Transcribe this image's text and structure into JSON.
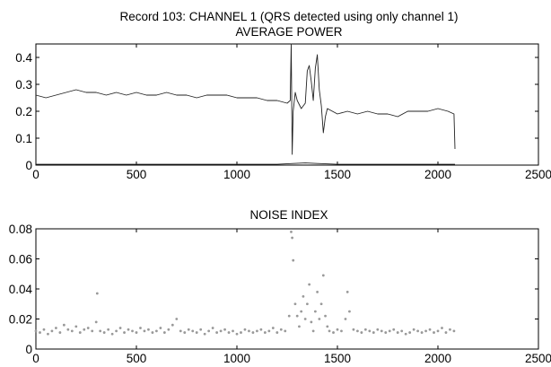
{
  "figure": {
    "suptitle": "Record 103: CHANNEL 1 (QRS detected using only channel 1)"
  },
  "chart_data": [
    {
      "type": "line",
      "title": "AVERAGE POWER",
      "xlabel": "",
      "ylabel": "",
      "xlim": [
        0,
        2500
      ],
      "ylim": [
        0,
        0.45
      ],
      "xticks": [
        0,
        500,
        1000,
        1500,
        2000,
        2500
      ],
      "yticks": [
        0,
        0.1,
        0.2,
        0.3,
        0.4
      ],
      "xtick_labels": [
        "0",
        "500",
        "1000",
        "1500",
        "2000",
        "2500"
      ],
      "ytick_labels": [
        "0",
        "0.1",
        "0.2",
        "0.3",
        "0.4"
      ],
      "grid": false,
      "series": [
        {
          "color": "#222222",
          "style": "line",
          "x": [
            0,
            50,
            100,
            150,
            200,
            250,
            300,
            350,
            400,
            450,
            500,
            550,
            600,
            650,
            700,
            750,
            800,
            850,
            900,
            950,
            1000,
            1050,
            1100,
            1150,
            1200,
            1250,
            1265,
            1270,
            1275,
            1280,
            1290,
            1300,
            1320,
            1340,
            1350,
            1360,
            1370,
            1380,
            1390,
            1400,
            1410,
            1420,
            1430,
            1440,
            1450,
            1500,
            1550,
            1600,
            1650,
            1700,
            1750,
            1800,
            1850,
            1900,
            1950,
            2000,
            2050,
            2080,
            2085
          ],
          "y": [
            0.26,
            0.25,
            0.26,
            0.27,
            0.28,
            0.27,
            0.27,
            0.26,
            0.27,
            0.26,
            0.27,
            0.26,
            0.26,
            0.27,
            0.26,
            0.26,
            0.25,
            0.26,
            0.26,
            0.26,
            0.25,
            0.25,
            0.25,
            0.24,
            0.24,
            0.23,
            0.24,
            0.45,
            0.04,
            0.2,
            0.27,
            0.24,
            0.21,
            0.23,
            0.35,
            0.37,
            0.31,
            0.24,
            0.36,
            0.41,
            0.28,
            0.22,
            0.12,
            0.18,
            0.21,
            0.19,
            0.2,
            0.19,
            0.2,
            0.19,
            0.19,
            0.18,
            0.2,
            0.2,
            0.2,
            0.21,
            0.2,
            0.19,
            0.06
          ]
        },
        {
          "color": "#222222",
          "style": "line",
          "x": [
            0,
            500,
            1000,
            1200,
            1280,
            1340,
            1400,
            1500,
            2000,
            2085
          ],
          "y": [
            0.003,
            0.003,
            0.003,
            0.003,
            0.006,
            0.008,
            0.006,
            0.003,
            0.003,
            0.003
          ]
        }
      ]
    },
    {
      "type": "scatter",
      "title": "NOISE INDEX",
      "xlabel": "",
      "ylabel": "",
      "xlim": [
        0,
        2500
      ],
      "ylim": [
        0,
        0.08
      ],
      "xticks": [
        0,
        500,
        1000,
        1500,
        2000,
        2500
      ],
      "yticks": [
        0,
        0.02,
        0.04,
        0.06,
        0.08
      ],
      "xtick_labels": [
        "0",
        "500",
        "1000",
        "1500",
        "2000",
        "2500"
      ],
      "ytick_labels": [
        "0",
        "0.02",
        "0.04",
        "0.06",
        "0.08"
      ],
      "grid": false,
      "series": [
        {
          "color": "#999999",
          "style": "points",
          "x": [
            0,
            20,
            40,
            60,
            80,
            100,
            120,
            140,
            160,
            180,
            200,
            220,
            240,
            260,
            280,
            300,
            305,
            320,
            340,
            360,
            380,
            400,
            420,
            440,
            460,
            480,
            500,
            520,
            540,
            560,
            580,
            600,
            620,
            640,
            660,
            680,
            700,
            720,
            740,
            760,
            780,
            800,
            820,
            840,
            860,
            880,
            900,
            920,
            940,
            960,
            980,
            1000,
            1020,
            1040,
            1060,
            1080,
            1100,
            1120,
            1140,
            1160,
            1180,
            1200,
            1220,
            1240,
            1260,
            1270,
            1275,
            1280,
            1290,
            1300,
            1310,
            1320,
            1330,
            1340,
            1350,
            1360,
            1370,
            1380,
            1390,
            1400,
            1410,
            1420,
            1430,
            1440,
            1450,
            1460,
            1480,
            1500,
            1520,
            1540,
            1550,
            1560,
            1580,
            1600,
            1620,
            1640,
            1660,
            1680,
            1700,
            1720,
            1740,
            1760,
            1780,
            1800,
            1820,
            1840,
            1860,
            1880,
            1900,
            1920,
            1940,
            1960,
            1980,
            2000,
            2020,
            2040,
            2060,
            2080
          ],
          "y": [
            0.012,
            0.011,
            0.013,
            0.01,
            0.012,
            0.014,
            0.011,
            0.016,
            0.013,
            0.012,
            0.015,
            0.011,
            0.013,
            0.014,
            0.012,
            0.018,
            0.037,
            0.012,
            0.011,
            0.013,
            0.01,
            0.012,
            0.014,
            0.011,
            0.013,
            0.012,
            0.011,
            0.014,
            0.012,
            0.013,
            0.011,
            0.012,
            0.014,
            0.011,
            0.013,
            0.016,
            0.02,
            0.012,
            0.011,
            0.013,
            0.012,
            0.011,
            0.013,
            0.01,
            0.012,
            0.014,
            0.011,
            0.012,
            0.013,
            0.011,
            0.012,
            0.01,
            0.011,
            0.013,
            0.012,
            0.011,
            0.012,
            0.013,
            0.011,
            0.012,
            0.014,
            0.011,
            0.013,
            0.012,
            0.022,
            0.078,
            0.074,
            0.059,
            0.03,
            0.022,
            0.015,
            0.025,
            0.035,
            0.02,
            0.03,
            0.043,
            0.018,
            0.012,
            0.025,
            0.038,
            0.02,
            0.03,
            0.049,
            0.022,
            0.015,
            0.012,
            0.011,
            0.013,
            0.012,
            0.02,
            0.038,
            0.025,
            0.013,
            0.012,
            0.011,
            0.013,
            0.012,
            0.011,
            0.013,
            0.012,
            0.011,
            0.012,
            0.013,
            0.011,
            0.012,
            0.01,
            0.011,
            0.013,
            0.012,
            0.011,
            0.012,
            0.013,
            0.011,
            0.012,
            0.014,
            0.011,
            0.013,
            0.012
          ]
        }
      ]
    }
  ]
}
